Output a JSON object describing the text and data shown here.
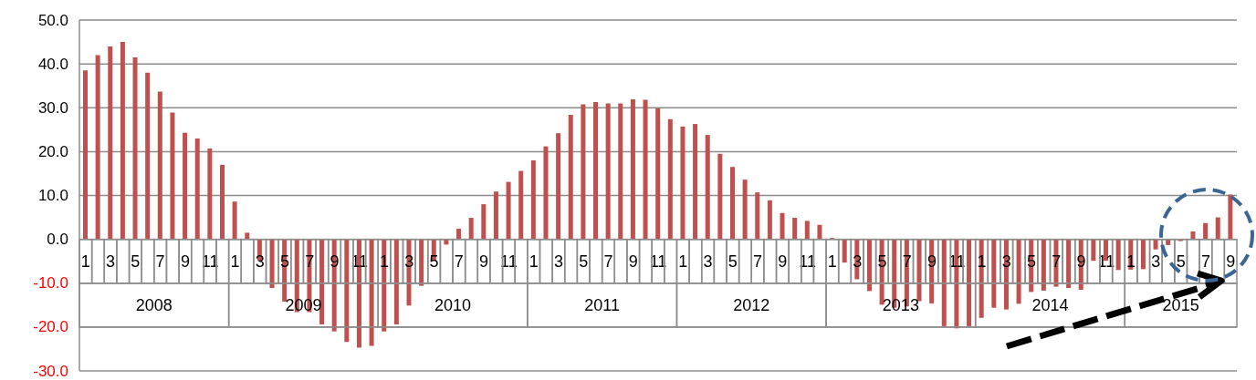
{
  "chart_data": {
    "type": "bar",
    "categories": [
      "1",
      null,
      "3",
      null,
      "5",
      null,
      "7",
      null,
      "9",
      null,
      "11",
      null,
      "1",
      null,
      "3",
      null,
      "5",
      null,
      "7",
      null,
      "9",
      null,
      "11",
      null,
      "1",
      null,
      "3",
      null,
      "5",
      null,
      "7",
      null,
      "9",
      null,
      "11",
      null,
      "1",
      null,
      "3",
      null,
      "5",
      null,
      "7",
      null,
      "9",
      null,
      "11",
      null,
      "1",
      null,
      "3",
      null,
      "5",
      null,
      "7",
      null,
      "9",
      null,
      "11",
      null,
      "1",
      null,
      "3",
      null,
      "5",
      null,
      "7",
      null,
      "9",
      null,
      "11",
      null,
      "1",
      null,
      "3",
      null,
      "5",
      null,
      "7",
      null,
      "9",
      null,
      "11",
      null,
      "1",
      null,
      "3",
      null,
      "5",
      null,
      "7",
      null,
      "9"
    ],
    "values": [
      38.5,
      42,
      44,
      45,
      41.5,
      38,
      33.7,
      28.9,
      24.3,
      23,
      20.7,
      17,
      8.6,
      1.5,
      -4.9,
      -11.1,
      -14.2,
      -16.6,
      -16.6,
      -19.4,
      -21,
      -23.4,
      -24.7,
      -24.3,
      -21,
      -19.4,
      -15.1,
      -10.6,
      -4.9,
      -1.2,
      2.4,
      4.9,
      8,
      10.9,
      13.1,
      15.6,
      18,
      21.2,
      24.2,
      28.4,
      30.8,
      31.3,
      31,
      31,
      31.9,
      31.8,
      29.9,
      27.4,
      25.7,
      26.3,
      23.8,
      19.5,
      16.5,
      13.6,
      10.7,
      8.9,
      6,
      4.9,
      4.2,
      3.3,
      0.3,
      -5.3,
      -9.1,
      -11.8,
      -14.9,
      -15.6,
      -15.3,
      -14.1,
      -14.6,
      -19.8,
      -20.3,
      -19.8,
      -17.9,
      -15.6,
      -16,
      -14.7,
      -12,
      -11.7,
      -10.8,
      -11.1,
      -11.5,
      -4.9,
      -4.9,
      -7,
      -6.9,
      -6.8,
      -2.3,
      -1.3,
      -0.4,
      1.8,
      3.7,
      5,
      10.2
    ],
    "color": "#c0504d",
    "ylim": [
      -30,
      50
    ],
    "yticks": [
      {
        "value": -30,
        "label": "-30.0"
      },
      {
        "value": -20,
        "label": "-20.0"
      },
      {
        "value": -10,
        "label": "-10.0"
      },
      {
        "value": 0,
        "label": "0.0"
      },
      {
        "value": 10,
        "label": "10.0"
      },
      {
        "value": 20,
        "label": "20.0"
      },
      {
        "value": 30,
        "label": "30.0"
      },
      {
        "value": 40,
        "label": "40.0"
      },
      {
        "value": 50,
        "label": "50.0"
      }
    ],
    "grid": "y",
    "annotations": [
      "2008",
      "2009",
      "2010",
      "2011",
      "2012",
      "2013",
      "2014",
      "2015"
    ]
  }
}
